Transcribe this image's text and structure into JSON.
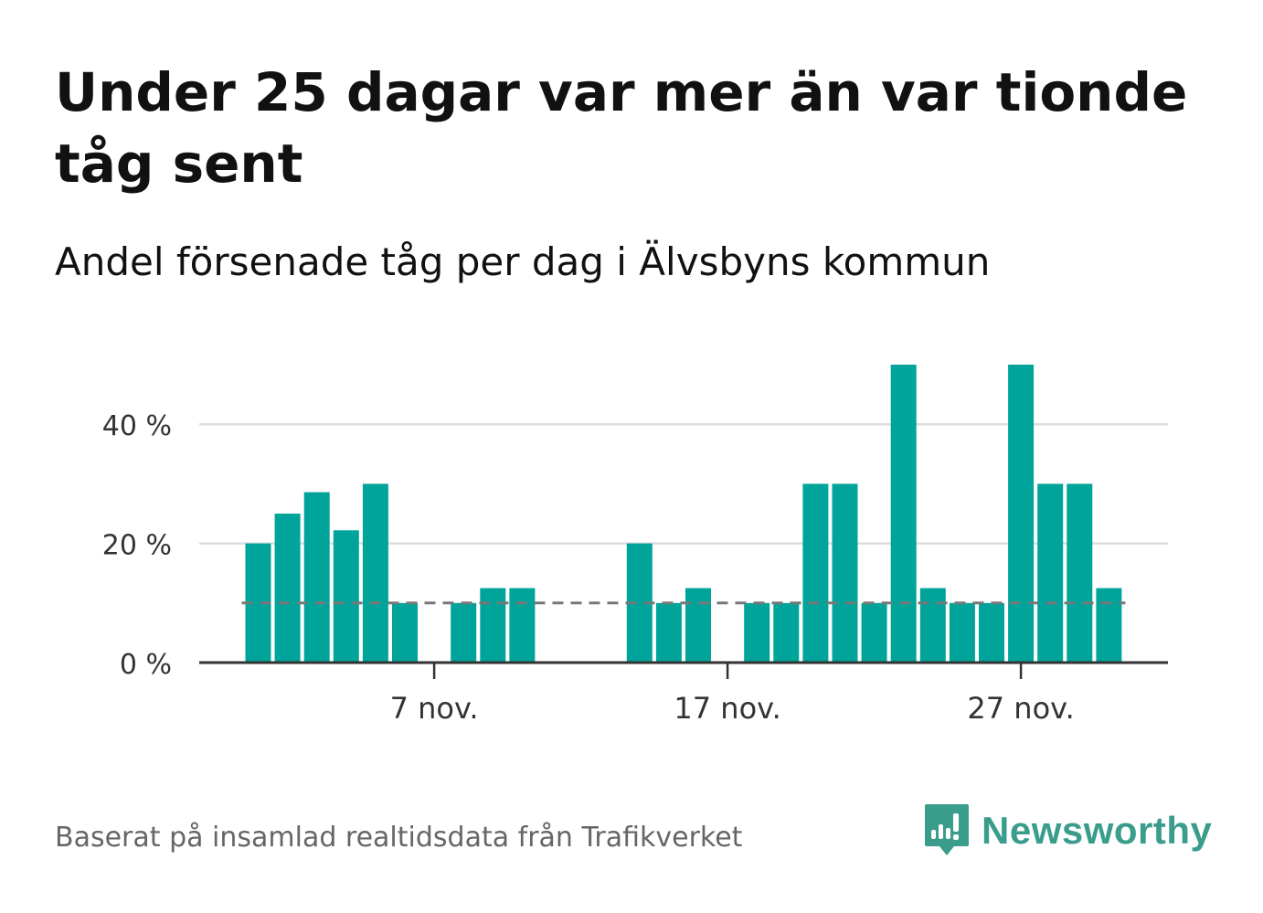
{
  "title": "Under 25 dagar var mer än var tionde tåg sent",
  "subtitle": "Andel försenade tåg per dag i Älvsbyns kommun",
  "source": "Baserat på insamlad realtidsdata från Trafikverket",
  "brand": {
    "name": "Newsworthy",
    "icon": "newsworthy-logo-icon"
  },
  "colors": {
    "bar": "#00a49a",
    "reference_line": "#777777",
    "grid": "#dddddd",
    "axis": "#333333",
    "brand": "#3a9d8c"
  },
  "chart_data": {
    "type": "bar",
    "title": "Under 25 dagar var mer än var tionde tåg sent",
    "subtitle": "Andel försenade tåg per dag i Älvsbyns kommun",
    "x": [
      "1 nov.",
      "2 nov.",
      "3 nov.",
      "4 nov.",
      "5 nov.",
      "6 nov.",
      "7 nov.",
      "8 nov.",
      "9 nov.",
      "10 nov.",
      "11 nov.",
      "12 nov.",
      "13 nov.",
      "14 nov.",
      "15 nov.",
      "16 nov.",
      "17 nov.",
      "18 nov.",
      "19 nov.",
      "20 nov.",
      "21 nov.",
      "22 nov.",
      "23 nov.",
      "24 nov.",
      "25 nov.",
      "26 nov.",
      "27 nov.",
      "28 nov.",
      "29 nov.",
      "30 nov."
    ],
    "values": [
      20,
      25,
      28.6,
      22.2,
      30,
      10,
      0,
      10,
      12.5,
      12.5,
      0,
      0,
      0,
      20,
      10,
      12.5,
      0,
      10,
      10,
      30,
      30,
      10,
      50,
      12.5,
      10,
      10,
      50,
      30,
      30,
      12.5
    ],
    "reference_line": 10,
    "ylim": [
      0,
      50
    ],
    "yticks": [
      0,
      20,
      40
    ],
    "ytick_labels": [
      "0 %",
      "20 %",
      "40 %"
    ],
    "xtick_labels": [
      {
        "label": "7 nov.",
        "at": "7 nov."
      },
      {
        "label": "17 nov.",
        "at": "17 nov."
      },
      {
        "label": "27 nov.",
        "at": "27 nov."
      }
    ],
    "xlabel": "",
    "ylabel": "",
    "grid": true,
    "legend": "none"
  }
}
